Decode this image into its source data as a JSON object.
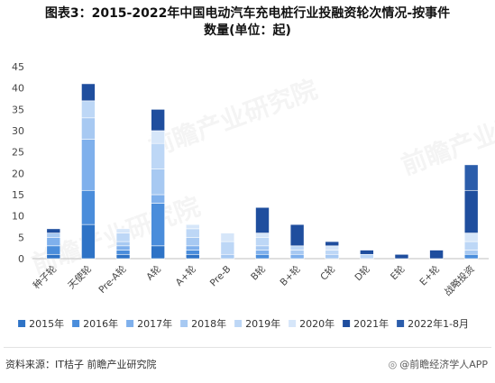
{
  "title_line1": "图表3：2015-2022年中国电动汽车充电桩行业投融资轮次情况-按事件",
  "title_line2": "数量(单位：起)",
  "source_label": "资料来源：IT桔子 前瞻产业研究院",
  "footer_brand": "@前瞻经济学人APP",
  "watermark_text": "前瞻产业研究院",
  "chart_data": {
    "type": "bar",
    "stacked": true,
    "title": "图表3：2015-2022年中国电动汽车充电桩行业投融资轮次情况-按事件数量(单位：起)",
    "ylim": [
      0,
      45
    ],
    "yticks": [
      0,
      5,
      10,
      15,
      20,
      25,
      30,
      35,
      40,
      45
    ],
    "legend_position": "bottom",
    "grid": false,
    "categories": [
      "种子轮",
      "天使轮",
      "Pre-A轮",
      "A轮",
      "A+轮",
      "Pre-B",
      "B轮",
      "B+轮",
      "C轮",
      "D轮",
      "E轮",
      "E+轮",
      "战略投资"
    ],
    "series": [
      {
        "name": "2015年",
        "color": "#2E73C6",
        "values": [
          1,
          8,
          1,
          3,
          1,
          0,
          0,
          0,
          0,
          0,
          0,
          0,
          0
        ]
      },
      {
        "name": "2016年",
        "color": "#4A8DDB",
        "values": [
          2,
          8,
          1,
          10,
          1,
          0,
          1,
          0,
          0,
          0,
          0,
          0,
          1
        ]
      },
      {
        "name": "2017年",
        "color": "#7FB0EC",
        "values": [
          2,
          12,
          1,
          2,
          1,
          0,
          1,
          1,
          0,
          0,
          0,
          0,
          0
        ]
      },
      {
        "name": "2018年",
        "color": "#A7C9F2",
        "values": [
          1,
          5,
          1,
          6,
          2,
          1,
          1,
          1,
          1,
          0,
          0,
          0,
          1
        ]
      },
      {
        "name": "2019年",
        "color": "#BDD7F6",
        "values": [
          0,
          4,
          2,
          6,
          2,
          3,
          2,
          1,
          1,
          1,
          0,
          0,
          2
        ]
      },
      {
        "name": "2020年",
        "color": "#D6E6F9",
        "values": [
          0,
          0,
          1,
          3,
          1,
          2,
          1,
          0,
          1,
          0,
          0,
          0,
          2
        ]
      },
      {
        "name": "2021年",
        "color": "#1F4E9E",
        "values": [
          1,
          4,
          0,
          5,
          0,
          0,
          6,
          5,
          1,
          1,
          1,
          2,
          10
        ]
      },
      {
        "name": "2022年1-8月",
        "color": "#2B5DAB",
        "values": [
          0,
          0,
          0,
          0,
          0,
          0,
          0,
          0,
          0,
          0,
          0,
          0,
          6
        ]
      }
    ]
  }
}
